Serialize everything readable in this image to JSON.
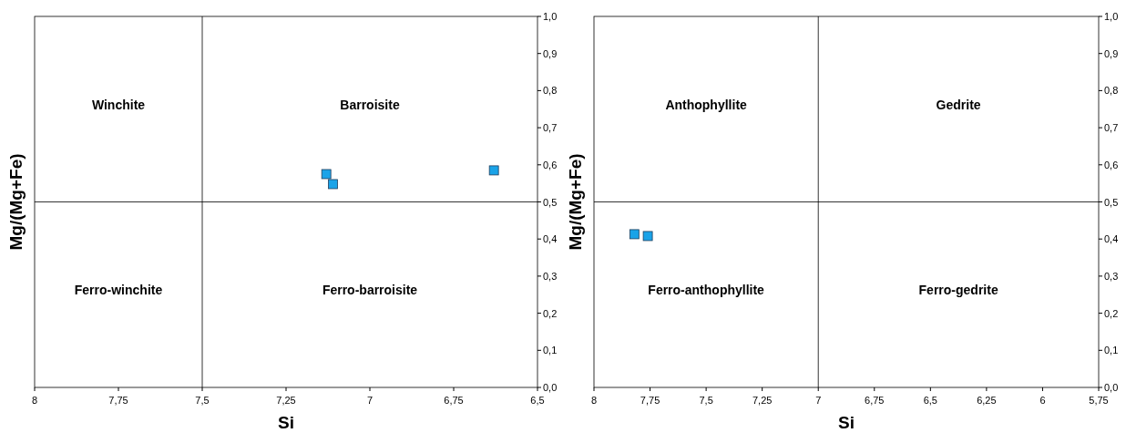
{
  "chart_data": [
    {
      "type": "scatter",
      "xlabel": "Si",
      "ylabel": "Mg/(Mg+Fe)",
      "xlim": [
        8,
        6.5
      ],
      "ylim": [
        0,
        1
      ],
      "xticks": [
        8,
        {
          "value": 7.75,
          "label": "7,75"
        },
        {
          "value": 7.5,
          "label": "7,5"
        },
        {
          "value": 7.25,
          "label": "7,25"
        },
        7,
        {
          "value": 6.75,
          "label": "6,75"
        },
        {
          "value": 6.5,
          "label": "6,5"
        }
      ],
      "yticks": [
        {
          "value": 0,
          "label": "0,0"
        },
        {
          "value": 0.1,
          "label": "0,1"
        },
        {
          "value": 0.2,
          "label": "0,2"
        },
        {
          "value": 0.3,
          "label": "0,3"
        },
        {
          "value": 0.4,
          "label": "0,4"
        },
        {
          "value": 0.5,
          "label": "0,5"
        },
        {
          "value": 0.6,
          "label": "0,6"
        },
        {
          "value": 0.7,
          "label": "0,7"
        },
        {
          "value": 0.8,
          "label": "0,8"
        },
        {
          "value": 0.9,
          "label": "0,9"
        },
        {
          "value": 1,
          "label": "1,0"
        }
      ],
      "marker": "square",
      "grid": false,
      "series": [
        {
          "color": "#1aa3e8",
          "x": [
            7.13,
            7.11,
            6.63
          ],
          "values": [
            0.575,
            0.548,
            0.585
          ]
        }
      ],
      "ref_lines": [
        {
          "axis": "x",
          "value": 7.5
        },
        {
          "axis": "y",
          "value": 0.5
        }
      ],
      "annotations": [
        "Winchite",
        "Barroisite",
        "Ferro-winchite",
        "Ferro-barroisite"
      ]
    },
    {
      "type": "scatter",
      "xlabel": "Si",
      "ylabel": "Mg/(Mg+Fe)",
      "xlim": [
        8,
        5.75
      ],
      "ylim": [
        0,
        1
      ],
      "xticks": [
        8,
        {
          "value": 7.75,
          "label": "7,75"
        },
        {
          "value": 7.5,
          "label": "7,5"
        },
        {
          "value": 7.25,
          "label": "7,25"
        },
        7,
        {
          "value": 6.75,
          "label": "6,75"
        },
        {
          "value": 6.5,
          "label": "6,5"
        },
        {
          "value": 6.25,
          "label": "6,25"
        },
        6,
        {
          "value": 5.75,
          "label": "5,75"
        }
      ],
      "yticks": [
        {
          "value": 0,
          "label": "0,0"
        },
        {
          "value": 0.1,
          "label": "0,1"
        },
        {
          "value": 0.2,
          "label": "0,2"
        },
        {
          "value": 0.3,
          "label": "0,3"
        },
        {
          "value": 0.4,
          "label": "0,4"
        },
        {
          "value": 0.5,
          "label": "0,5"
        },
        {
          "value": 0.6,
          "label": "0,6"
        },
        {
          "value": 0.7,
          "label": "0,7"
        },
        {
          "value": 0.8,
          "label": "0,8"
        },
        {
          "value": 0.9,
          "label": "0,9"
        },
        {
          "value": 1,
          "label": "1,0"
        }
      ],
      "marker": "square",
      "grid": false,
      "series": [
        {
          "color": "#1aa3e8",
          "x": [
            7.82,
            7.76
          ],
          "values": [
            0.413,
            0.408
          ]
        }
      ],
      "ref_lines": [
        {
          "axis": "x",
          "value": 7
        },
        {
          "axis": "y",
          "value": 0.5
        }
      ],
      "annotations": [
        "Anthophyllite",
        "Gedrite",
        "Ferro-anthophyllite",
        "Ferro-gedrite"
      ]
    }
  ]
}
